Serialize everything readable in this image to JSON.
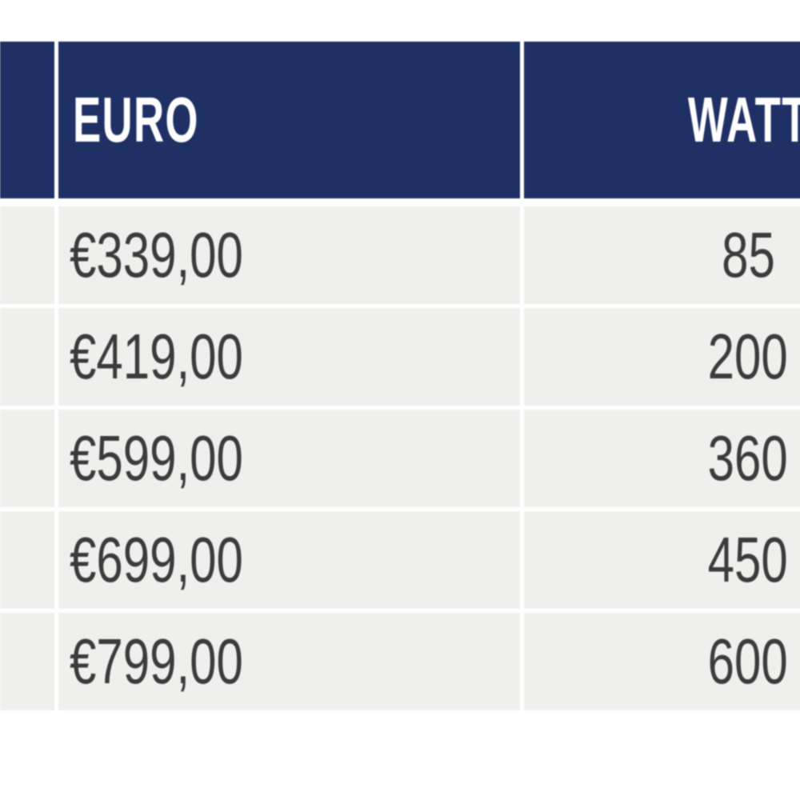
{
  "table": {
    "header": {
      "left_partial": "",
      "euro": "EURO",
      "watt": "WATT"
    },
    "rows": [
      {
        "euro": "€339,00",
        "watt": "85"
      },
      {
        "euro": "€419,00",
        "watt": "200"
      },
      {
        "euro": "€599,00",
        "watt": "360"
      },
      {
        "euro": "€699,00",
        "watt": "450"
      },
      {
        "euro": "€799,00",
        "watt": "600"
      }
    ]
  },
  "colors": {
    "header_bg": "#1f3164",
    "header_text": "#ffffff",
    "row_bg": "#efefed",
    "cell_text": "#3b3b3b",
    "page_bg": "#ffffff",
    "gutter": "#ffffff"
  }
}
